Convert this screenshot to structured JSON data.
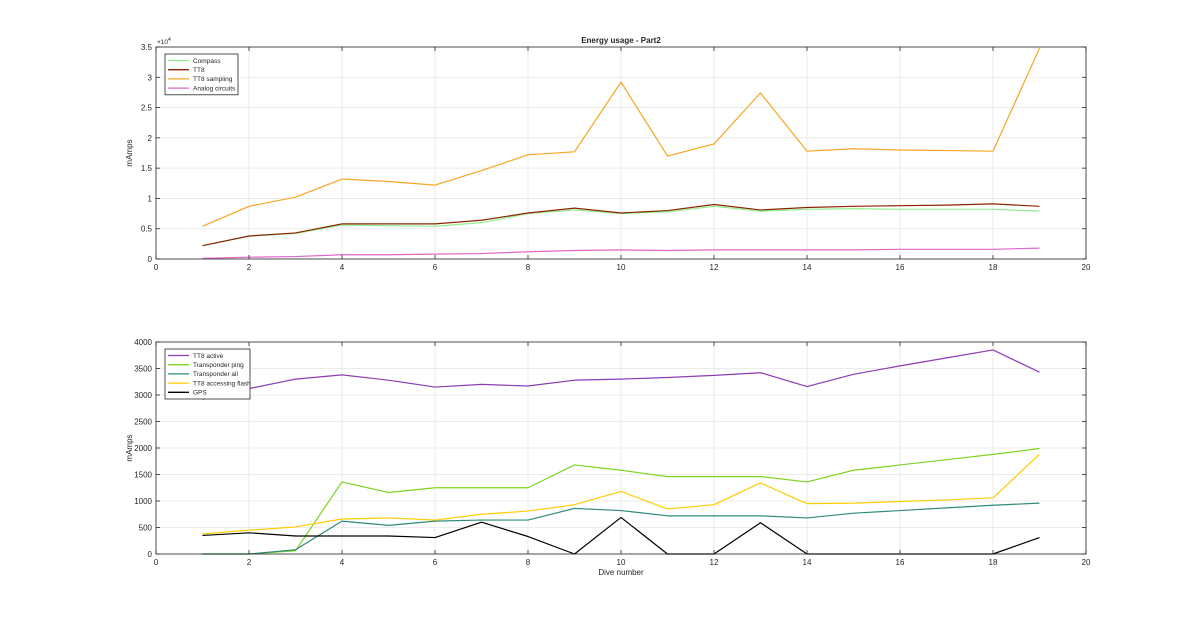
{
  "chart_data": [
    {
      "type": "line",
      "title": "Energy usage - Part2",
      "xlabel": "",
      "ylabel": "mAmps",
      "xlim": [
        0,
        20
      ],
      "ylim": [
        0,
        35000
      ],
      "y_exponent_label": "×10",
      "y_exponent_power": "4",
      "x_ticks": [
        0,
        2,
        4,
        6,
        8,
        10,
        12,
        14,
        16,
        18,
        20
      ],
      "y_ticks": [
        0,
        5000,
        10000,
        15000,
        20000,
        25000,
        30000,
        35000
      ],
      "y_tick_labels": [
        "0",
        "0.5",
        "1",
        "1.5",
        "2",
        "2.5",
        "3",
        "3.5"
      ],
      "grid": true,
      "legend_position": "top-left",
      "x": [
        1,
        2,
        3,
        4,
        5,
        6,
        7,
        8,
        9,
        10,
        11,
        12,
        13,
        14,
        15,
        16,
        17,
        18,
        19
      ],
      "series": [
        {
          "name": "Compass",
          "color": "#90ee90",
          "values": [
            2200,
            3800,
            4200,
            5600,
            5500,
            5400,
            6000,
            7500,
            8100,
            7500,
            7800,
            8700,
            7900,
            8200,
            8300,
            8200,
            8200,
            8200,
            7900
          ]
        },
        {
          "name": "TT8",
          "color": "#8b2500",
          "values": [
            2200,
            3800,
            4300,
            5800,
            5800,
            5800,
            6400,
            7600,
            8400,
            7600,
            8000,
            9000,
            8100,
            8500,
            8700,
            8800,
            8900,
            9100,
            8700
          ]
        },
        {
          "name": "TT8 sampling",
          "color": "#f5a623",
          "values": [
            5400,
            8700,
            10200,
            13200,
            12800,
            12200,
            14600,
            17200,
            17700,
            29200,
            17000,
            19000,
            27400,
            17800,
            18200,
            18000,
            17900,
            17800,
            34800
          ]
        },
        {
          "name": "Analog circuits",
          "color": "#e066c9",
          "values": [
            100,
            300,
            400,
            700,
            700,
            800,
            900,
            1200,
            1400,
            1500,
            1400,
            1500,
            1500,
            1500,
            1500,
            1600,
            1600,
            1600,
            1800
          ]
        }
      ]
    },
    {
      "type": "line",
      "title": "",
      "xlabel": "Dive number",
      "ylabel": "mAmps",
      "xlim": [
        0,
        20
      ],
      "ylim": [
        0,
        4000
      ],
      "x_ticks": [
        0,
        2,
        4,
        6,
        8,
        10,
        12,
        14,
        16,
        18,
        20
      ],
      "y_ticks": [
        0,
        500,
        1000,
        1500,
        2000,
        2500,
        3000,
        3500,
        4000
      ],
      "y_tick_labels": [
        "0",
        "500",
        "1000",
        "1500",
        "2000",
        "2500",
        "3000",
        "3500",
        "4000"
      ],
      "grid": true,
      "legend_position": "top-left",
      "x": [
        1,
        2,
        3,
        4,
        5,
        6,
        7,
        8,
        9,
        10,
        11,
        12,
        13,
        14,
        15,
        16,
        17,
        18,
        19
      ],
      "series": [
        {
          "name": "TT8 active",
          "color": "#8e3bb5",
          "values": [
            2920,
            3120,
            3300,
            3380,
            3280,
            3150,
            3200,
            3170,
            3280,
            3300,
            3330,
            3370,
            3420,
            3160,
            3390,
            3550,
            3700,
            3850,
            3430
          ]
        },
        {
          "name": "Transponder ping",
          "color": "#7ed321",
          "values": [
            0,
            0,
            60,
            1360,
            1160,
            1250,
            1250,
            1250,
            1680,
            1580,
            1460,
            1460,
            1460,
            1360,
            1580,
            1680,
            1780,
            1880,
            1990
          ]
        },
        {
          "name": "Transponder all",
          "color": "#2e8b7a",
          "values": [
            0,
            0,
            80,
            620,
            540,
            620,
            640,
            640,
            860,
            820,
            720,
            720,
            720,
            680,
            770,
            820,
            870,
            920,
            960
          ]
        },
        {
          "name": "TT8 accessing flash",
          "color": "#ffcc00",
          "values": [
            380,
            450,
            510,
            660,
            680,
            640,
            750,
            810,
            930,
            1180,
            850,
            930,
            1340,
            950,
            960,
            990,
            1020,
            1060,
            1880
          ]
        },
        {
          "name": "GPS",
          "color": "#000000",
          "values": [
            350,
            400,
            340,
            340,
            340,
            310,
            600,
            330,
            0,
            690,
            0,
            0,
            590,
            0,
            0,
            0,
            0,
            0,
            310
          ]
        }
      ]
    }
  ]
}
